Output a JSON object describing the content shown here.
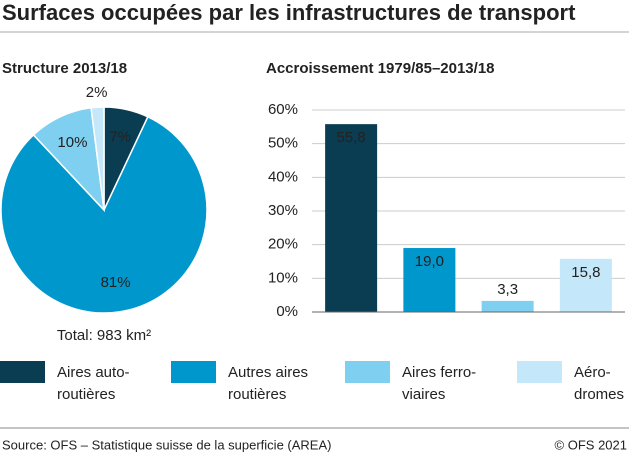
{
  "title": "Surfaces occupées par les infrastructures de transport",
  "legend": [
    {
      "lines": [
        "Aires auto-",
        "routières"
      ],
      "color": "#0b3d52"
    },
    {
      "lines": [
        "Autres aires",
        "routières"
      ],
      "color": "#0097cc"
    },
    {
      "lines": [
        "Aires ferro-",
        "viaires"
      ],
      "color": "#7fcff0"
    },
    {
      "lines": [
        "Aéro-",
        "dromes"
      ],
      "color": "#c4e7fa"
    }
  ],
  "chart_data": [
    {
      "type": "pie",
      "title": "Structure 2013/18",
      "values": [
        7,
        81,
        10,
        2
      ],
      "value_labels": [
        "7%",
        "81%",
        "10%",
        "2%"
      ],
      "colors": [
        "#0b3d52",
        "#0097cc",
        "#7fcff0",
        "#c4e7fa"
      ],
      "note": "Total: 983 km²"
    },
    {
      "type": "bar",
      "title": "Accroissement 1979/85–2013/18",
      "values": [
        55.8,
        19.0,
        3.3,
        15.8
      ],
      "value_labels": [
        "55,8",
        "19,0",
        "3,3",
        "15,8"
      ],
      "colors": [
        "#0b3d52",
        "#0097cc",
        "#7fcff0",
        "#c4e7fa"
      ],
      "ylim": [
        0,
        60
      ],
      "yticks": [
        {
          "value": 0,
          "label": "0%"
        },
        {
          "value": 10,
          "label": "10%"
        },
        {
          "value": 20,
          "label": "20%"
        },
        {
          "value": 30,
          "label": "30%"
        },
        {
          "value": 40,
          "label": "40%"
        },
        {
          "value": 50,
          "label": "50%"
        },
        {
          "value": 60,
          "label": "60%"
        }
      ],
      "grid": true
    }
  ],
  "source": "Source: OFS – Statistique suisse de la superficie (AREA)",
  "copyright": "© OFS 2021"
}
